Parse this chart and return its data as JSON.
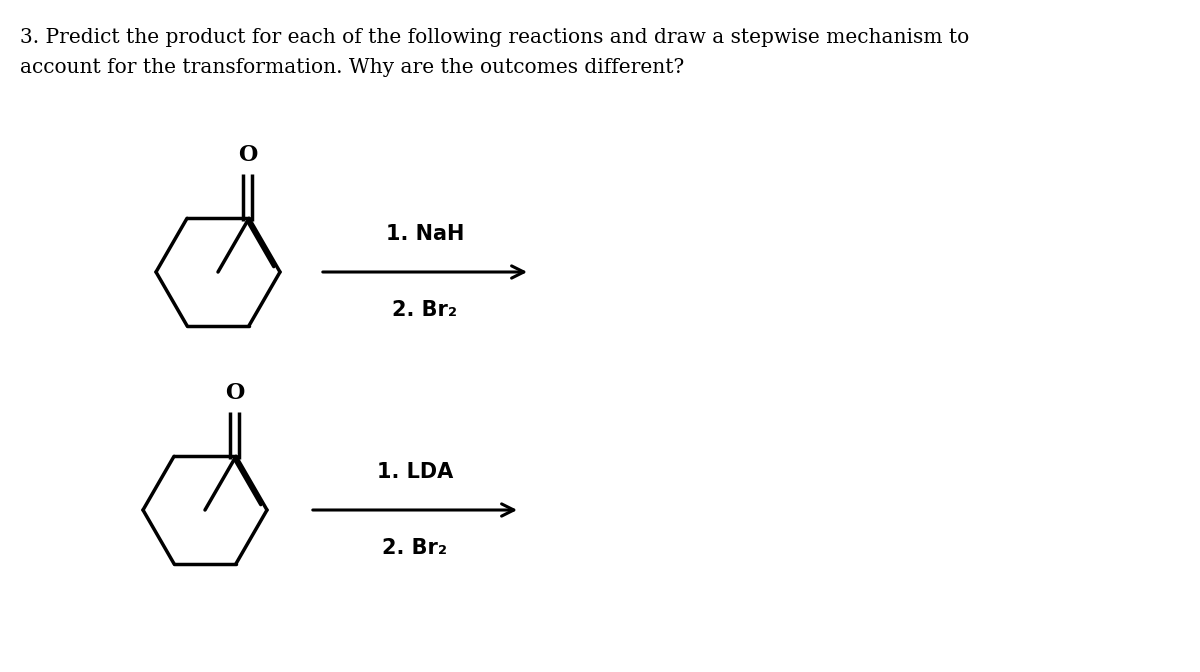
{
  "title_line1": "3. Predict the product for each of the following reactions and draw a stepwise mechanism to",
  "title_line2": "account for the transformation. Why are the outcomes different?",
  "reaction1_step1": "1. NaH",
  "reaction1_step2": "2. Br₂",
  "reaction2_step1": "1. LDA",
  "reaction2_step2": "2. Br₂",
  "bg_color": "#ffffff",
  "text_color": "#000000",
  "title_fontsize": 14.5,
  "reagent_fontsize": 15,
  "mol_lw": 2.5,
  "arrow_lw": 2.2,
  "o_fontsize": 16
}
